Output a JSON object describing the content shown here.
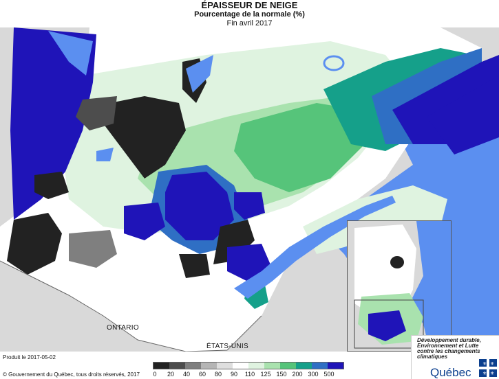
{
  "header": {
    "title": "ÉPAISSEUR DE NEIGE",
    "subtitle": "Pourcentage de la normale (%)",
    "date": "Fin avril 2017"
  },
  "map": {
    "labels": {
      "ontario": "ONTARIO",
      "us": "ÉTATS-UNIS"
    },
    "colors": {
      "land_out": "#d9d9d9",
      "water": "#5b8ff0",
      "white": "#ffffff",
      "p0_20": "#222222",
      "p20_40": "#4d4d4d",
      "p40_60": "#7f7f7f",
      "p60_80": "#b5b5b5",
      "p80_90": "#dedede",
      "p110_125": "#dff3e0",
      "p125_150": "#a9e2ae",
      "p150_200": "#56c47a",
      "p200_300": "#15a08a",
      "p300_500": "#2f6fc4",
      "p500": "#1f14b8"
    }
  },
  "footer": {
    "produced": "Produit le 2017-05-02",
    "copyright": "© Gouvernement du Québec, tous droits réservés, 2017"
  },
  "legend": {
    "colors": [
      "#222222",
      "#4d4d4d",
      "#7f7f7f",
      "#b5b5b5",
      "#dedede",
      "#ffffff",
      "#dff3e0",
      "#a9e2ae",
      "#56c47a",
      "#15a08a",
      "#2f6fc4",
      "#1f14b8"
    ],
    "ticks": [
      "0",
      "20",
      "40",
      "60",
      "80",
      "90",
      "110",
      "125",
      "150",
      "200",
      "300",
      "500"
    ]
  },
  "branding": {
    "ministry": [
      "Développement durable,",
      "Environnement et Lutte",
      "contre les changements",
      "climatiques"
    ],
    "gov": "Québec"
  }
}
